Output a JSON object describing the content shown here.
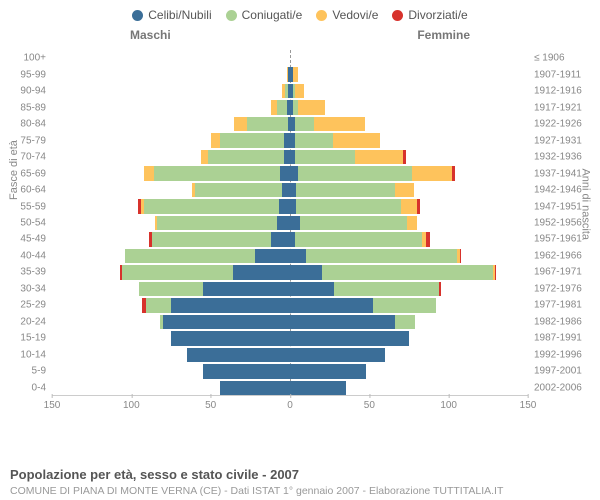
{
  "chart": {
    "type": "population-pyramid",
    "title": "Popolazione per età, sesso e stato civile - 2007",
    "subtitle": "COMUNE DI PIANA DI MONTE VERNA (CE) - Dati ISTAT 1° gennaio 2007 - Elaborazione TUTTITALIA.IT",
    "gender_left_label": "Maschi",
    "gender_right_label": "Femmine",
    "y_left_label": "Fasce di età",
    "y_right_label": "Anni di nascita",
    "xmax": 150,
    "xticks": [
      150,
      100,
      50,
      0,
      50,
      100,
      150
    ],
    "background_color": "#ffffff",
    "grid_dash_color": "#999999",
    "text_color": "#888888",
    "legend": [
      {
        "label": "Celibi/Nubili",
        "color": "#3b6e98"
      },
      {
        "label": "Coniugati/e",
        "color": "#abd194"
      },
      {
        "label": "Vedovi/e",
        "color": "#fec35c"
      },
      {
        "label": "Divorziati/e",
        "color": "#d7322c"
      }
    ],
    "series_colors": {
      "single": "#3b6e98",
      "married": "#abd194",
      "widowed": "#fec35c",
      "divorced": "#d7322c"
    },
    "rows": [
      {
        "age": "100+",
        "birth": "≤ 1906",
        "m": {
          "single": 0,
          "married": 0,
          "widowed": 0,
          "divorced": 0
        },
        "f": {
          "single": 0,
          "married": 0,
          "widowed": 0,
          "divorced": 0
        }
      },
      {
        "age": "95-99",
        "birth": "1907-1911",
        "m": {
          "single": 1,
          "married": 0,
          "widowed": 1,
          "divorced": 0
        },
        "f": {
          "single": 2,
          "married": 0,
          "widowed": 3,
          "divorced": 0
        }
      },
      {
        "age": "90-94",
        "birth": "1912-1916",
        "m": {
          "single": 1,
          "married": 2,
          "widowed": 2,
          "divorced": 0
        },
        "f": {
          "single": 2,
          "married": 1,
          "widowed": 6,
          "divorced": 0
        }
      },
      {
        "age": "85-89",
        "birth": "1917-1921",
        "m": {
          "single": 2,
          "married": 6,
          "widowed": 4,
          "divorced": 0
        },
        "f": {
          "single": 2,
          "married": 3,
          "widowed": 17,
          "divorced": 0
        }
      },
      {
        "age": "80-84",
        "birth": "1922-1926",
        "m": {
          "single": 1,
          "married": 26,
          "widowed": 8,
          "divorced": 0
        },
        "f": {
          "single": 3,
          "married": 12,
          "widowed": 32,
          "divorced": 0
        }
      },
      {
        "age": "75-79",
        "birth": "1927-1931",
        "m": {
          "single": 4,
          "married": 40,
          "widowed": 6,
          "divorced": 0
        },
        "f": {
          "single": 3,
          "married": 24,
          "widowed": 30,
          "divorced": 0
        }
      },
      {
        "age": "70-74",
        "birth": "1932-1936",
        "m": {
          "single": 4,
          "married": 48,
          "widowed": 4,
          "divorced": 0
        },
        "f": {
          "single": 3,
          "married": 38,
          "widowed": 30,
          "divorced": 2
        }
      },
      {
        "age": "65-69",
        "birth": "1937-1941",
        "m": {
          "single": 6,
          "married": 80,
          "widowed": 6,
          "divorced": 0
        },
        "f": {
          "single": 5,
          "married": 72,
          "widowed": 25,
          "divorced": 2
        }
      },
      {
        "age": "60-64",
        "birth": "1942-1946",
        "m": {
          "single": 5,
          "married": 55,
          "widowed": 2,
          "divorced": 0
        },
        "f": {
          "single": 4,
          "married": 62,
          "widowed": 12,
          "divorced": 0
        }
      },
      {
        "age": "55-59",
        "birth": "1947-1951",
        "m": {
          "single": 7,
          "married": 85,
          "widowed": 2,
          "divorced": 2
        },
        "f": {
          "single": 4,
          "married": 66,
          "widowed": 10,
          "divorced": 2
        }
      },
      {
        "age": "50-54",
        "birth": "1952-1956",
        "m": {
          "single": 8,
          "married": 76,
          "widowed": 1,
          "divorced": 0
        },
        "f": {
          "single": 6,
          "married": 68,
          "widowed": 6,
          "divorced": 0
        }
      },
      {
        "age": "45-49",
        "birth": "1957-1961",
        "m": {
          "single": 12,
          "married": 75,
          "widowed": 0,
          "divorced": 2
        },
        "f": {
          "single": 3,
          "married": 80,
          "widowed": 3,
          "divorced": 2
        }
      },
      {
        "age": "40-44",
        "birth": "1962-1966",
        "m": {
          "single": 22,
          "married": 82,
          "widowed": 0,
          "divorced": 0
        },
        "f": {
          "single": 10,
          "married": 95,
          "widowed": 2,
          "divorced": 1
        }
      },
      {
        "age": "35-39",
        "birth": "1967-1971",
        "m": {
          "single": 36,
          "married": 70,
          "widowed": 0,
          "divorced": 1
        },
        "f": {
          "single": 20,
          "married": 108,
          "widowed": 1,
          "divorced": 1
        }
      },
      {
        "age": "30-34",
        "birth": "1972-1976",
        "m": {
          "single": 55,
          "married": 40,
          "widowed": 0,
          "divorced": 0
        },
        "f": {
          "single": 28,
          "married": 66,
          "widowed": 0,
          "divorced": 1
        }
      },
      {
        "age": "25-29",
        "birth": "1977-1981",
        "m": {
          "single": 75,
          "married": 16,
          "widowed": 0,
          "divorced": 2
        },
        "f": {
          "single": 52,
          "married": 40,
          "widowed": 0,
          "divorced": 0
        }
      },
      {
        "age": "20-24",
        "birth": "1982-1986",
        "m": {
          "single": 80,
          "married": 2,
          "widowed": 0,
          "divorced": 0
        },
        "f": {
          "single": 66,
          "married": 13,
          "widowed": 0,
          "divorced": 0
        }
      },
      {
        "age": "15-19",
        "birth": "1987-1991",
        "m": {
          "single": 75,
          "married": 0,
          "widowed": 0,
          "divorced": 0
        },
        "f": {
          "single": 75,
          "married": 0,
          "widowed": 0,
          "divorced": 0
        }
      },
      {
        "age": "10-14",
        "birth": "1992-1996",
        "m": {
          "single": 65,
          "married": 0,
          "widowed": 0,
          "divorced": 0
        },
        "f": {
          "single": 60,
          "married": 0,
          "widowed": 0,
          "divorced": 0
        }
      },
      {
        "age": "5-9",
        "birth": "1997-2001",
        "m": {
          "single": 55,
          "married": 0,
          "widowed": 0,
          "divorced": 0
        },
        "f": {
          "single": 48,
          "married": 0,
          "widowed": 0,
          "divorced": 0
        }
      },
      {
        "age": "0-4",
        "birth": "2002-2006",
        "m": {
          "single": 44,
          "married": 0,
          "widowed": 0,
          "divorced": 0
        },
        "f": {
          "single": 35,
          "married": 0,
          "widowed": 0,
          "divorced": 0
        }
      }
    ]
  }
}
